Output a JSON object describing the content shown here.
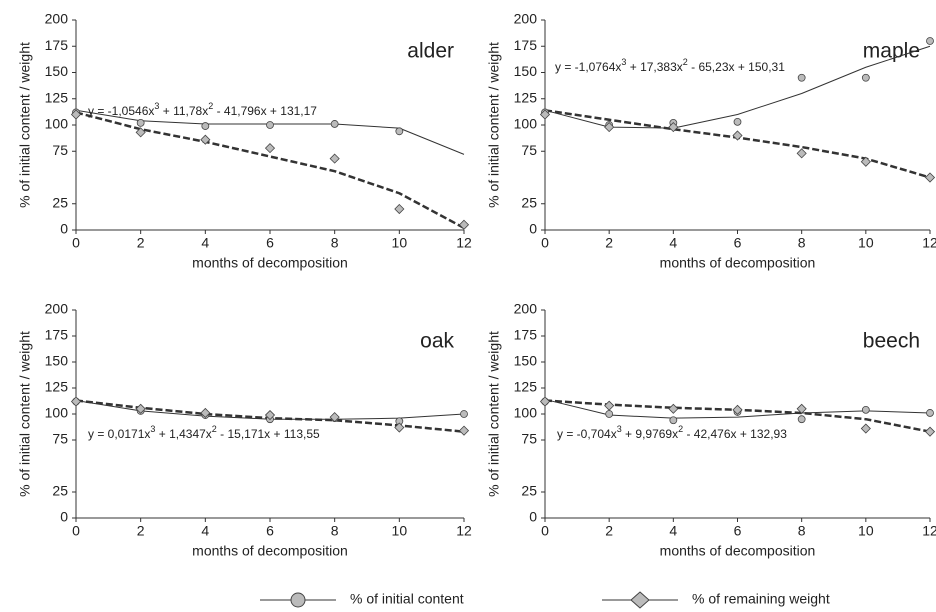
{
  "chart_data": [
    {
      "type": "line",
      "title": "alder",
      "x_label": "months of decomposition",
      "y_label": "% of initial content / weight",
      "equation": [
        "y = -1,0546x",
        "3",
        " + 11,78x",
        "2",
        " - 41,796x + 131,17"
      ],
      "x": [
        0,
        2,
        4,
        6,
        8,
        10,
        12
      ],
      "xlim": [
        0,
        12
      ],
      "xticks": [
        0,
        2,
        4,
        6,
        8,
        10,
        12
      ],
      "ylim": [
        0,
        200
      ],
      "yticks": [
        0,
        25,
        75,
        100,
        125,
        150,
        175,
        200
      ],
      "series": [
        {
          "name": "% of initial content",
          "marker": "circle",
          "color": "#bbbbbb",
          "values": [
            112,
            102,
            99,
            100,
            101,
            94,
            null
          ],
          "trend_values": [
            114,
            104,
            101,
            101,
            101,
            97,
            72
          ]
        },
        {
          "name": "% of remaining weight",
          "marker": "diamond",
          "color": "#bbbbbb",
          "values": [
            110,
            93,
            86,
            78,
            68,
            20,
            5
          ],
          "trend_values": [
            112,
            96,
            84,
            70,
            56,
            35,
            2
          ]
        }
      ]
    },
    {
      "type": "line",
      "title": "maple",
      "x_label": "months of decomposition",
      "y_label": "% of initial content / weight",
      "equation": [
        "y = -1,0764x",
        "3",
        " + 17,383x",
        "2",
        " - 65,23x + 150,31"
      ],
      "x": [
        0,
        2,
        4,
        6,
        8,
        10,
        12
      ],
      "xlim": [
        0,
        12
      ],
      "xticks": [
        0,
        2,
        4,
        6,
        8,
        10,
        12
      ],
      "ylim": [
        0,
        200
      ],
      "yticks": [
        0,
        25,
        75,
        100,
        125,
        150,
        175,
        200
      ],
      "series": [
        {
          "name": "% of initial content",
          "marker": "circle",
          "color": "#bbbbbb",
          "values": [
            112,
            100,
            102,
            103,
            145,
            145,
            180
          ],
          "trend_values": [
            114,
            98,
            97,
            110,
            130,
            155,
            175
          ]
        },
        {
          "name": "% of remaining weight",
          "marker": "diamond",
          "color": "#bbbbbb",
          "values": [
            110,
            98,
            98,
            90,
            73,
            65,
            50
          ],
          "trend_values": [
            114,
            105,
            96,
            88,
            79,
            68,
            50
          ]
        }
      ]
    },
    {
      "type": "line",
      "title": "oak",
      "x_label": "months of decomposition",
      "y_label": "% of initial content / weight",
      "equation": [
        "y = 0,0171x",
        "3",
        " + 1,4347x",
        "2",
        " - 15,171x + 113,55"
      ],
      "x": [
        0,
        2,
        4,
        6,
        8,
        10,
        12
      ],
      "xlim": [
        0,
        12
      ],
      "xticks": [
        0,
        2,
        4,
        6,
        8,
        10,
        12
      ],
      "ylim": [
        0,
        200
      ],
      "yticks": [
        0,
        25,
        75,
        100,
        125,
        150,
        175,
        200
      ],
      "series": [
        {
          "name": "% of initial content",
          "marker": "circle",
          "color": "#bbbbbb",
          "values": [
            112,
            103,
            99,
            95,
            96,
            93,
            100
          ],
          "trend_values": [
            113,
            103,
            98,
            95,
            95,
            96,
            100
          ]
        },
        {
          "name": "% of remaining weight",
          "marker": "diamond",
          "color": "#bbbbbb",
          "values": [
            112,
            105,
            101,
            99,
            97,
            87,
            84
          ],
          "trend_values": [
            113,
            106,
            100,
            96,
            94,
            89,
            83
          ]
        }
      ]
    },
    {
      "type": "line",
      "title": "beech",
      "x_label": "months of decomposition",
      "y_label": "% of initial content / weight",
      "equation": [
        "y = -0,704x",
        "3",
        " + 9,9769x",
        "2",
        " - 42,476x + 132,93"
      ],
      "x": [
        0,
        2,
        4,
        6,
        8,
        10,
        12
      ],
      "xlim": [
        0,
        12
      ],
      "xticks": [
        0,
        2,
        4,
        6,
        8,
        10,
        12
      ],
      "ylim": [
        0,
        200
      ],
      "yticks": [
        0,
        25,
        75,
        100,
        125,
        150,
        175,
        200
      ],
      "series": [
        {
          "name": "% of initial content",
          "marker": "circle",
          "color": "#bbbbbb",
          "values": [
            112,
            100,
            94,
            102,
            95,
            104,
            101
          ],
          "trend_values": [
            114,
            99,
            96,
            97,
            101,
            103,
            101
          ]
        },
        {
          "name": "% of remaining weight",
          "marker": "diamond",
          "color": "#bbbbbb",
          "values": [
            112,
            108,
            105,
            104,
            105,
            86,
            83
          ],
          "trend_values": [
            113,
            109,
            106,
            104,
            101,
            95,
            83
          ]
        }
      ]
    }
  ]
}
